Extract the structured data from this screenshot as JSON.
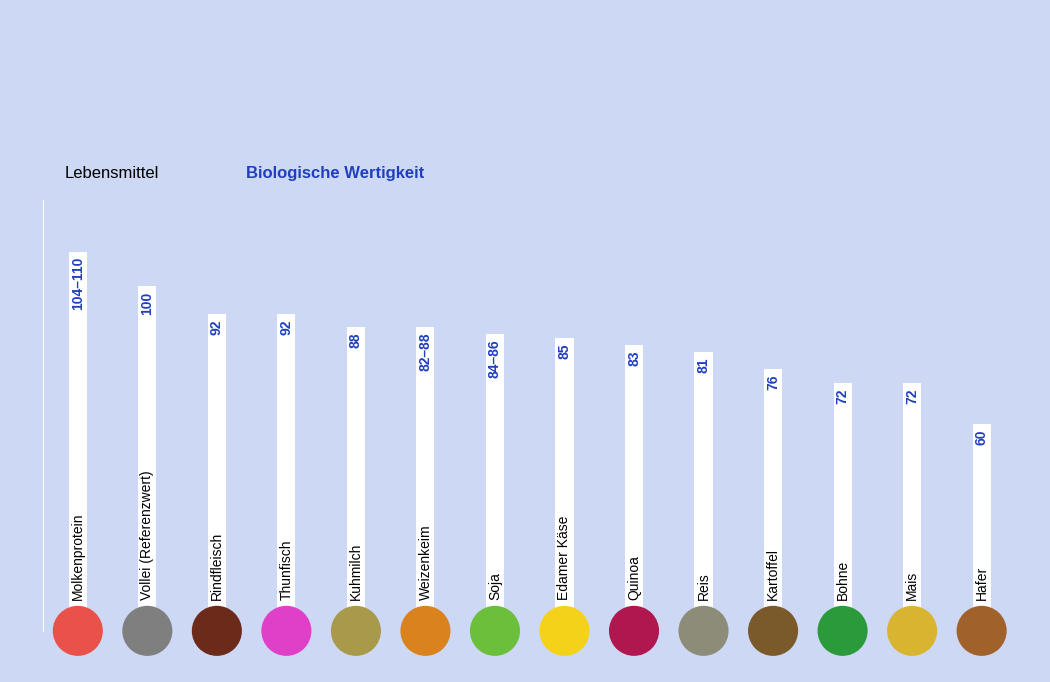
{
  "chart_data": {
    "type": "bar",
    "xlabel": "Lebensmittel",
    "ylabel": "Biologische Wertigkeit",
    "categories": [
      "Molkenprotein",
      "Vollei (Referenzwert)",
      "Rindfleisch",
      "Thunfisch",
      "Kuhmilch",
      "Weizenkeim",
      "Soja",
      "Edamer Käse",
      "Quinoa",
      "Reis",
      "Kartoffel",
      "Bohne",
      "Mais",
      "Hafer"
    ],
    "values": [
      110,
      100,
      92,
      92,
      88,
      88,
      86,
      85,
      83,
      81,
      76,
      72,
      72,
      60
    ],
    "value_labels": [
      "104–110",
      "100",
      "92",
      "92",
      "88",
      "82–88",
      "84–86",
      "85",
      "83",
      "81",
      "76",
      "72",
      "72",
      "60"
    ],
    "color": "#ffffff",
    "ylim": [
      0,
      125
    ],
    "yticks": [],
    "tick_labels": false,
    "data_labels": true
  }
}
